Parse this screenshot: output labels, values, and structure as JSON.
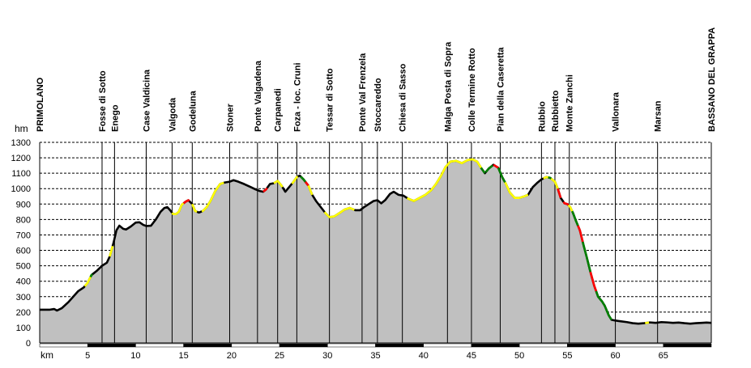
{
  "chart_data": {
    "type": "area",
    "title": "",
    "xlabel": "km",
    "ylabel": "hm",
    "xlim": [
      0,
      70
    ],
    "ylim": [
      0,
      1300
    ],
    "x_ticks": [
      5,
      10,
      15,
      20,
      25,
      30,
      35,
      40,
      45,
      50,
      55,
      60,
      65
    ],
    "y_ticks": [
      0,
      100,
      200,
      300,
      400,
      500,
      600,
      700,
      800,
      900,
      1000,
      1100,
      1200,
      1300
    ],
    "grid": {
      "horizontal": true,
      "style": "dashed"
    },
    "colors": {
      "fill": "#c0c0c0",
      "flat": "#000000",
      "moderate": "#ffff00",
      "steep": "#ff0000",
      "very_steep": "#008000",
      "marker": "#000000",
      "axis": "#000000",
      "grid": "#000000"
    },
    "waypoints": [
      {
        "name": "PRIMOLANO",
        "km": 0.0,
        "bold": true
      },
      {
        "name": "Fosse di Sotto",
        "km": 6.5,
        "bold": false
      },
      {
        "name": "Enego",
        "km": 7.8,
        "bold": false
      },
      {
        "name": "Case Valdicina",
        "km": 11.1,
        "bold": false
      },
      {
        "name": "Valgoda",
        "km": 13.8,
        "bold": false
      },
      {
        "name": "Godeluna",
        "km": 15.9,
        "bold": false
      },
      {
        "name": "Stoner",
        "km": 19.8,
        "bold": false
      },
      {
        "name": "Ponte Valgadena",
        "km": 22.7,
        "bold": false
      },
      {
        "name": "Carpanedi",
        "km": 24.8,
        "bold": false
      },
      {
        "name": "Foza - loc. Cruni",
        "km": 26.8,
        "bold": false
      },
      {
        "name": "Tessar di Sotto",
        "km": 30.2,
        "bold": false
      },
      {
        "name": "Ponte Val Frenzela",
        "km": 33.6,
        "bold": false
      },
      {
        "name": "Stoccareddo",
        "km": 35.2,
        "bold": false
      },
      {
        "name": "Chiesa di Sasso",
        "km": 37.8,
        "bold": false
      },
      {
        "name": "Malga Posta di Sopra",
        "km": 42.5,
        "bold": false
      },
      {
        "name": "Colle Termine Rotto",
        "km": 45.0,
        "bold": false
      },
      {
        "name": "Pian della Caseretta",
        "km": 48.0,
        "bold": false
      },
      {
        "name": "Rubbio",
        "km": 52.3,
        "bold": false
      },
      {
        "name": "Rubbietto",
        "km": 53.7,
        "bold": false
      },
      {
        "name": "Monte Zanchi",
        "km": 55.2,
        "bold": false
      },
      {
        "name": "Vallonara",
        "km": 60.0,
        "bold": false
      },
      {
        "name": "Marsan",
        "km": 64.4,
        "bold": false
      },
      {
        "name": "BASSANO DEL GRAPPA",
        "km": 70.0,
        "bold": true
      }
    ],
    "profile": [
      [
        0,
        215
      ],
      [
        1.0,
        215
      ],
      [
        1.5,
        220
      ],
      [
        1.8,
        210
      ],
      [
        2.3,
        225
      ],
      [
        3.0,
        265
      ],
      [
        3.5,
        300
      ],
      [
        4.0,
        335
      ],
      [
        4.6,
        360
      ],
      [
        5.0,
        390
      ],
      [
        5.4,
        440
      ],
      [
        6.0,
        470
      ],
      [
        6.5,
        500
      ],
      [
        7.0,
        520
      ],
      [
        7.3,
        560
      ],
      [
        7.7,
        650
      ],
      [
        8.0,
        730
      ],
      [
        8.3,
        760
      ],
      [
        8.7,
        740
      ],
      [
        9.0,
        735
      ],
      [
        9.5,
        755
      ],
      [
        10.0,
        780
      ],
      [
        10.4,
        782
      ],
      [
        10.8,
        765
      ],
      [
        11.1,
        758
      ],
      [
        11.6,
        760
      ],
      [
        12.1,
        800
      ],
      [
        12.6,
        850
      ],
      [
        13.0,
        875
      ],
      [
        13.3,
        880
      ],
      [
        13.6,
        860
      ],
      [
        13.9,
        835
      ],
      [
        14.2,
        835
      ],
      [
        14.5,
        850
      ],
      [
        14.8,
        895
      ],
      [
        15.2,
        915
      ],
      [
        15.5,
        925
      ],
      [
        15.9,
        900
      ],
      [
        16.2,
        855
      ],
      [
        16.6,
        845
      ],
      [
        17.0,
        855
      ],
      [
        17.4,
        880
      ],
      [
        17.8,
        920
      ],
      [
        18.3,
        985
      ],
      [
        18.8,
        1030
      ],
      [
        19.3,
        1040
      ],
      [
        19.8,
        1045
      ],
      [
        20.2,
        1055
      ],
      [
        20.7,
        1045
      ],
      [
        21.3,
        1030
      ],
      [
        22.0,
        1010
      ],
      [
        22.5,
        995
      ],
      [
        22.9,
        985
      ],
      [
        23.3,
        980
      ],
      [
        23.6,
        995
      ],
      [
        24.0,
        1030
      ],
      [
        24.4,
        1035
      ],
      [
        24.8,
        1050
      ],
      [
        25.2,
        1020
      ],
      [
        25.6,
        980
      ],
      [
        26.0,
        1010
      ],
      [
        26.4,
        1040
      ],
      [
        26.8,
        1075
      ],
      [
        27.1,
        1085
      ],
      [
        27.5,
        1060
      ],
      [
        28.0,
        1020
      ],
      [
        28.4,
        960
      ],
      [
        28.8,
        920
      ],
      [
        29.3,
        880
      ],
      [
        29.8,
        840
      ],
      [
        30.2,
        815
      ],
      [
        30.7,
        820
      ],
      [
        31.2,
        840
      ],
      [
        31.8,
        865
      ],
      [
        32.3,
        875
      ],
      [
        32.9,
        860
      ],
      [
        33.4,
        860
      ],
      [
        33.8,
        880
      ],
      [
        34.3,
        900
      ],
      [
        34.8,
        920
      ],
      [
        35.2,
        925
      ],
      [
        35.6,
        905
      ],
      [
        36.0,
        925
      ],
      [
        36.5,
        965
      ],
      [
        36.9,
        980
      ],
      [
        37.4,
        960
      ],
      [
        37.9,
        955
      ],
      [
        38.4,
        935
      ],
      [
        39.0,
        920
      ],
      [
        39.6,
        940
      ],
      [
        40.2,
        960
      ],
      [
        40.8,
        990
      ],
      [
        41.3,
        1030
      ],
      [
        41.8,
        1080
      ],
      [
        42.3,
        1140
      ],
      [
        42.8,
        1175
      ],
      [
        43.4,
        1180
      ],
      [
        44.0,
        1165
      ],
      [
        44.6,
        1185
      ],
      [
        45.1,
        1190
      ],
      [
        45.6,
        1175
      ],
      [
        46.0,
        1135
      ],
      [
        46.4,
        1100
      ],
      [
        46.8,
        1130
      ],
      [
        47.3,
        1155
      ],
      [
        47.8,
        1135
      ],
      [
        48.2,
        1075
      ],
      [
        48.6,
        1030
      ],
      [
        49.0,
        975
      ],
      [
        49.5,
        940
      ],
      [
        50.0,
        940
      ],
      [
        50.5,
        950
      ],
      [
        50.9,
        960
      ],
      [
        51.4,
        1010
      ],
      [
        51.9,
        1040
      ],
      [
        52.3,
        1060
      ],
      [
        52.8,
        1075
      ],
      [
        53.2,
        1070
      ],
      [
        53.7,
        1045
      ],
      [
        54.0,
        1000
      ],
      [
        54.3,
        940
      ],
      [
        54.7,
        905
      ],
      [
        55.0,
        900
      ],
      [
        55.3,
        880
      ],
      [
        55.6,
        840
      ],
      [
        55.9,
        790
      ],
      [
        56.3,
        730
      ],
      [
        56.7,
        630
      ],
      [
        57.0,
        560
      ],
      [
        57.4,
        460
      ],
      [
        57.8,
        370
      ],
      [
        58.2,
        300
      ],
      [
        58.6,
        270
      ],
      [
        58.9,
        240
      ],
      [
        59.3,
        180
      ],
      [
        59.6,
        150
      ],
      [
        60.0,
        145
      ],
      [
        60.6,
        140
      ],
      [
        61.2,
        135
      ],
      [
        61.8,
        128
      ],
      [
        62.4,
        125
      ],
      [
        63.0,
        128
      ],
      [
        63.6,
        133
      ],
      [
        64.2,
        130
      ],
      [
        64.8,
        135
      ],
      [
        65.4,
        133
      ],
      [
        66.0,
        130
      ],
      [
        66.6,
        132
      ],
      [
        67.2,
        128
      ],
      [
        67.8,
        125
      ],
      [
        68.4,
        128
      ],
      [
        69.0,
        130
      ],
      [
        69.5,
        132
      ],
      [
        70.0,
        130
      ]
    ],
    "gradient_segments": [
      {
        "from": 4.7,
        "to": 5.3,
        "level": "moderate"
      },
      {
        "from": 5.3,
        "to": 5.5,
        "level": "very_steep"
      },
      {
        "from": 7.3,
        "to": 7.6,
        "level": "moderate"
      },
      {
        "from": 13.8,
        "to": 15.0,
        "level": "moderate"
      },
      {
        "from": 15.0,
        "to": 15.6,
        "level": "steep"
      },
      {
        "from": 15.9,
        "to": 16.4,
        "level": "moderate"
      },
      {
        "from": 16.9,
        "to": 19.2,
        "level": "moderate"
      },
      {
        "from": 23.3,
        "to": 23.7,
        "level": "steep"
      },
      {
        "from": 24.4,
        "to": 25.3,
        "level": "moderate"
      },
      {
        "from": 26.3,
        "to": 26.9,
        "level": "moderate"
      },
      {
        "from": 27.2,
        "to": 27.7,
        "level": "very_steep"
      },
      {
        "from": 27.7,
        "to": 28.0,
        "level": "steep"
      },
      {
        "from": 28.0,
        "to": 28.4,
        "level": "moderate"
      },
      {
        "from": 29.7,
        "to": 32.8,
        "level": "moderate"
      },
      {
        "from": 38.3,
        "to": 46.0,
        "level": "moderate"
      },
      {
        "from": 46.0,
        "to": 46.4,
        "level": "very_steep"
      },
      {
        "from": 46.5,
        "to": 47.2,
        "level": "very_steep"
      },
      {
        "from": 47.3,
        "to": 47.8,
        "level": "steep"
      },
      {
        "from": 47.8,
        "to": 48.5,
        "level": "very_steep"
      },
      {
        "from": 48.5,
        "to": 50.9,
        "level": "moderate"
      },
      {
        "from": 52.5,
        "to": 53.0,
        "level": "moderate"
      },
      {
        "from": 53.0,
        "to": 53.3,
        "level": "very_steep"
      },
      {
        "from": 53.3,
        "to": 54.0,
        "level": "moderate"
      },
      {
        "from": 54.0,
        "to": 54.3,
        "level": "steep"
      },
      {
        "from": 54.6,
        "to": 55.1,
        "level": "steep"
      },
      {
        "from": 55.1,
        "to": 55.5,
        "level": "moderate"
      },
      {
        "from": 55.5,
        "to": 56.1,
        "level": "very_steep"
      },
      {
        "from": 56.1,
        "to": 56.6,
        "level": "steep"
      },
      {
        "from": 56.6,
        "to": 57.4,
        "level": "very_steep"
      },
      {
        "from": 57.4,
        "to": 58.0,
        "level": "steep"
      },
      {
        "from": 58.0,
        "to": 58.3,
        "level": "very_steep"
      },
      {
        "from": 58.3,
        "to": 58.9,
        "level": "very_steep"
      },
      {
        "from": 58.9,
        "to": 59.6,
        "level": "very_steep"
      },
      {
        "from": 63.1,
        "to": 63.5,
        "level": "moderate"
      }
    ]
  }
}
